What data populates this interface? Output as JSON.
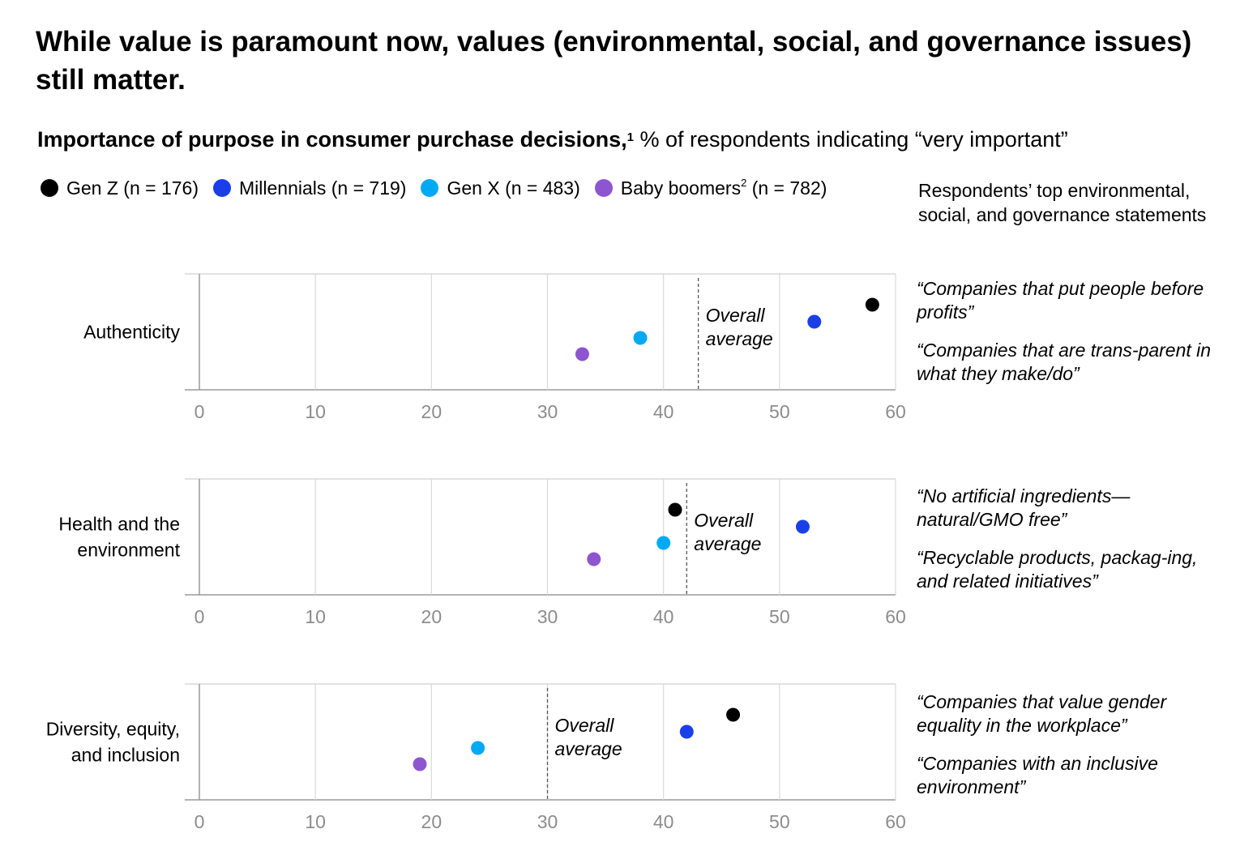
{
  "header": {
    "title": "While value is paramount now, values (environmental, social, and governance issues) still matter.",
    "subtitle_bold": "Importance of purpose in consumer purchase decisions,",
    "subtitle_footnote": "1",
    "subtitle_rest": " % of respondents indicating “very important”"
  },
  "legend": {
    "items": [
      {
        "label": "Gen Z (n = 176)",
        "color": "#000000"
      },
      {
        "label_pre": "Millennials (n = 719)",
        "color": "#1a3fe8"
      },
      {
        "label_pre": "Gen X (n = 483)",
        "color": "#00a9f4"
      },
      {
        "label_pre": "Baby boomers",
        "footnote": "2",
        "label_post": " (n = 782)",
        "color": "#8e55d1"
      }
    ]
  },
  "side_header": "Respondents’ top environmental, social, and governance statements",
  "colors": {
    "gen_z": "#000000",
    "millennials": "#1a3fe8",
    "gen_x": "#00a9f4",
    "baby_boomers": "#8e55d1",
    "grid": "#d9d9d9",
    "axis": "#9a9a9a",
    "tick_text": "#8c8c8c"
  },
  "chart_data": {
    "type": "scatter",
    "xlim": [
      0,
      60
    ],
    "xticks": [
      0,
      10,
      20,
      30,
      40,
      50,
      60
    ],
    "average_label": [
      "Overall",
      "average"
    ],
    "series_names": [
      "Gen Z",
      "Millennials",
      "Gen X",
      "Baby boomers"
    ],
    "panels": [
      {
        "category": [
          "Authenticity"
        ],
        "values": {
          "Gen Z": 58,
          "Millennials": 53,
          "Gen X": 38,
          "Baby boomers": 33
        },
        "overall_average": 43,
        "quotes": [
          "“Companies that put people before profits”",
          "“Companies that are trans-parent in what they make/do”"
        ]
      },
      {
        "category": [
          "Health and the",
          "environment"
        ],
        "values": {
          "Gen Z": 41,
          "Millennials": 52,
          "Gen X": 40,
          "Baby boomers": 34
        },
        "overall_average": 42,
        "quotes": [
          "“No artificial ingredients—natural/GMO free”",
          "“Recyclable products, packag-ing, and related initiatives”"
        ]
      },
      {
        "category": [
          "Diversity, equity,",
          "and inclusion"
        ],
        "values": {
          "Gen Z": 46,
          "Millennials": 42,
          "Gen X": 24,
          "Baby boomers": 19
        },
        "overall_average": 30,
        "quotes": [
          "“Companies that value gender equality in the workplace”",
          "“Companies with an inclusive environment”"
        ]
      }
    ]
  }
}
